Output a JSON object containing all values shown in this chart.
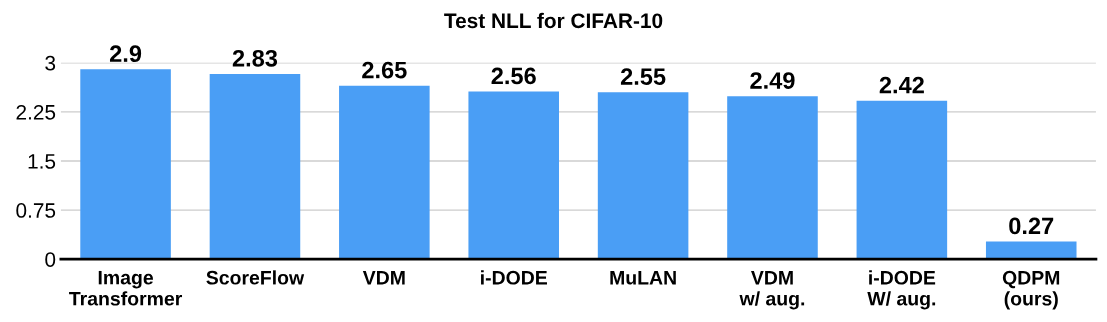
{
  "chart_data": {
    "type": "bar",
    "title": "Test NLL for CIFAR-10",
    "categories": [
      "Image\nTransformer",
      "ScoreFlow",
      "VDM",
      "i-DODE",
      "MuLAN",
      "VDM\nw/ aug.",
      "i-DODE\nW/ aug.",
      "QDPM\n(ours)"
    ],
    "values": [
      2.9,
      2.83,
      2.65,
      2.56,
      2.55,
      2.49,
      2.42,
      0.27
    ],
    "color": "#4a9ef5",
    "ylim": [
      0,
      3
    ],
    "yticks": [
      0,
      0.75,
      1.5,
      2.25,
      3
    ],
    "grid": "y",
    "data_labels": true
  }
}
